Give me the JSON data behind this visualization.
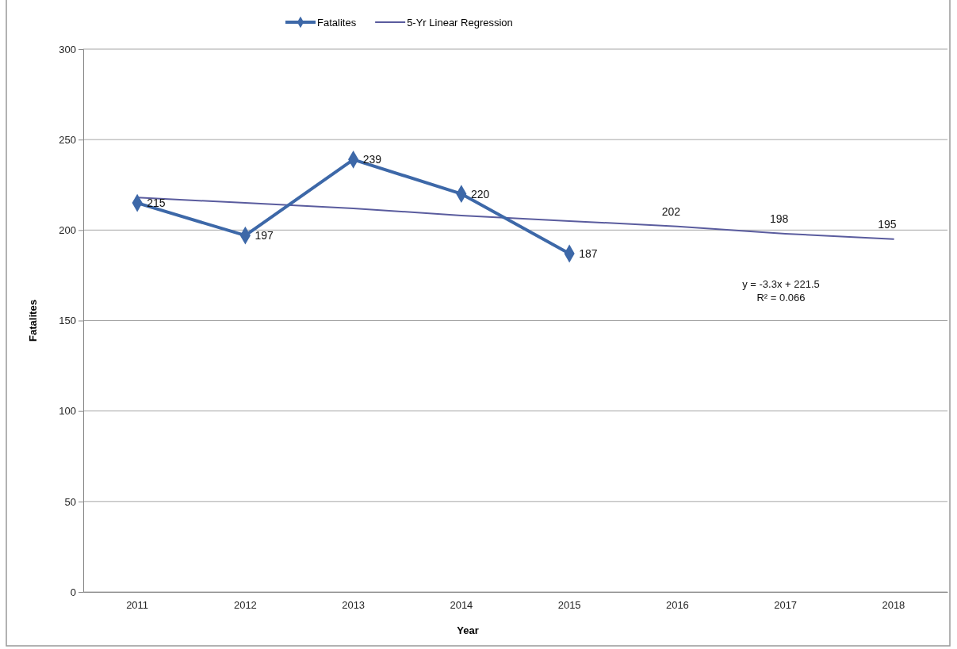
{
  "chart_data": {
    "type": "line",
    "xlabel": "Year",
    "ylabel": "Fatalites",
    "categories": [
      "2011",
      "2012",
      "2013",
      "2014",
      "2015",
      "2016",
      "2017",
      "2018"
    ],
    "series": [
      {
        "name": "Fatalites",
        "color": "#3d68a8",
        "marker": "diamond",
        "values": [
          215,
          197,
          239,
          220,
          187,
          null,
          null,
          null
        ],
        "value_labels": [
          "215",
          "197",
          "239",
          "220",
          "187",
          null,
          null,
          null
        ]
      },
      {
        "name": "5-Yr Linear Regression",
        "color": "#5a5c9e",
        "marker": "none",
        "values": [
          218,
          215,
          212,
          208,
          205,
          202,
          198,
          195
        ],
        "value_labels": [
          null,
          null,
          null,
          null,
          null,
          "202",
          "198",
          "195"
        ]
      }
    ],
    "annotations": [
      "y = -3.3x + 221.5",
      "R² = 0.066"
    ],
    "ylim": [
      0,
      300
    ],
    "yticks": [
      0,
      50,
      100,
      150,
      200,
      250,
      300
    ],
    "grid": "y",
    "legend": "top"
  }
}
